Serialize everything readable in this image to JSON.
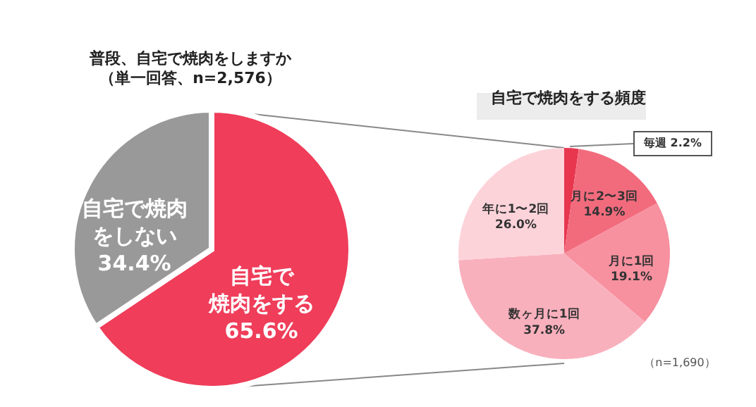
{
  "chart_data": [
    {
      "type": "pie",
      "title": "普段、自宅で焼肉をしますか",
      "subtitle": "（単一回答、n=2,576）",
      "categories": [
        "自宅で焼肉をする",
        "自宅で焼肉をしない"
      ],
      "values": [
        65.6,
        34.4
      ],
      "colors": [
        "#ef3d5a",
        "#999999"
      ],
      "value_labels": [
        "65.6%",
        "34.4%"
      ]
    },
    {
      "type": "pie",
      "title": "自宅で焼肉をする頻度",
      "categories": [
        "毎週",
        "月に2〜3回",
        "月に1回",
        "数ヶ月に1回",
        "年に1〜2回"
      ],
      "values": [
        2.2,
        14.9,
        19.1,
        37.8,
        26.0
      ],
      "colors": [
        "#e8364f",
        "#f26b7d",
        "#f7909f",
        "#f9b0bd",
        "#fdd3da"
      ],
      "value_labels": [
        "2.2%",
        "14.9%",
        "19.1%",
        "37.8%",
        "26.0%"
      ],
      "annotations": [
        "（n=1,690）"
      ]
    }
  ]
}
